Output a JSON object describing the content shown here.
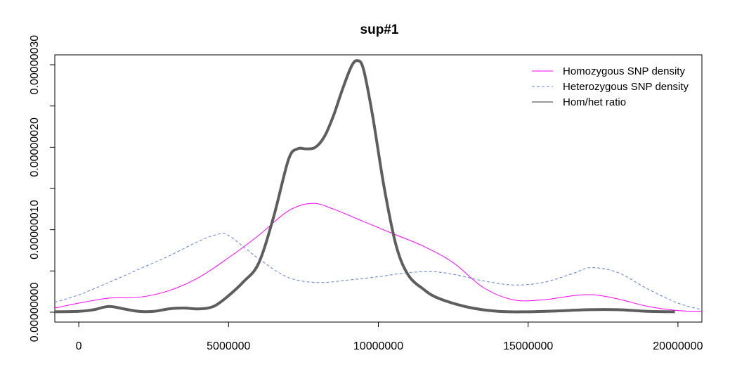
{
  "chart_data": {
    "type": "line",
    "title": "sup#1",
    "xlabel": "",
    "ylabel": "",
    "xlim": [
      -800000,
      20800000
    ],
    "ylim": [
      -1.2e-08,
      3.12e-07
    ],
    "x_ticks": [
      0,
      5000000,
      10000000,
      15000000,
      20000000
    ],
    "x_tick_labels": [
      "0",
      "5000000",
      "10000000",
      "15000000",
      "20000000"
    ],
    "y_ticks": [
      0,
      5e-08,
      1e-07,
      1.5e-07,
      2e-07,
      2.5e-07,
      3e-07
    ],
    "y_tick_labels": [
      "0.00000000",
      "",
      "0.00000010",
      "",
      "0.00000020",
      "",
      "0.00000030"
    ],
    "grid": false,
    "legend_position": "top-right",
    "series": [
      {
        "name": "Homozygous SNP density",
        "color": "#ff00ff",
        "style": "solid",
        "width": 1,
        "x": [
          -800000,
          0,
          1000000,
          2000000,
          3000000,
          4000000,
          5000000,
          6000000,
          7000000,
          7800000,
          8500000,
          9500000,
          10500000,
          11500000,
          12500000,
          13500000,
          14500000,
          15500000,
          16500000,
          17200000,
          18000000,
          19000000,
          20000000,
          20800000
        ],
        "y": [
          5e-09,
          1.1e-08,
          1.7e-08,
          1.8e-08,
          2.6e-08,
          4.2e-08,
          6.6e-08,
          9.3e-08,
          1.23e-07,
          1.32e-07,
          1.25e-07,
          1.1e-07,
          9.5e-08,
          8e-08,
          6e-08,
          3e-08,
          1.5e-08,
          1.5e-08,
          2e-08,
          2.1e-08,
          1.6e-08,
          7e-09,
          2e-09,
          1e-09
        ]
      },
      {
        "name": "Heterozygous SNP density",
        "color": "#5b7fd6",
        "style": "dashed",
        "width": 1,
        "x": [
          -800000,
          0,
          1000000,
          2000000,
          3000000,
          4000000,
          4600000,
          5000000,
          6000000,
          7000000,
          8000000,
          9000000,
          10000000,
          11000000,
          11800000,
          12500000,
          13500000,
          14500000,
          15500000,
          16500000,
          17100000,
          18000000,
          19000000,
          20000000,
          20800000
        ],
        "y": [
          1.2e-08,
          2.1e-08,
          3.6e-08,
          5.2e-08,
          6.8e-08,
          8.6e-08,
          9.4e-08,
          9.3e-08,
          6.5e-08,
          4.2e-08,
          3.6e-08,
          3.9e-08,
          4.3e-08,
          4.8e-08,
          4.9e-08,
          4.6e-08,
          3.8e-08,
          3.3e-08,
          3.6e-08,
          4.7e-08,
          5.4e-08,
          4.8e-08,
          2.8e-08,
          1.1e-08,
          3e-09
        ]
      },
      {
        "name": "Hom/het ratio",
        "color": "#5e5e5e",
        "style": "solid",
        "width": 4,
        "x": [
          -800000,
          0,
          500000,
          1000000,
          1500000,
          2000000,
          2500000,
          3000000,
          3500000,
          4000000,
          4500000,
          5000000,
          5500000,
          6000000,
          6500000,
          7000000,
          7300000,
          7600000,
          7900000,
          8200000,
          8500000,
          8800000,
          9100000,
          9300000,
          9500000,
          9800000,
          10200000,
          10600000,
          11000000,
          11500000,
          12000000,
          13000000,
          14000000,
          15000000,
          16000000,
          17000000,
          18000000,
          19000000,
          19900000
        ],
        "y": [
          5e-10,
          1e-09,
          3e-09,
          7e-09,
          4e-09,
          1e-09,
          1e-09,
          4e-09,
          5e-09,
          4e-09,
          7e-09,
          2e-08,
          3.7e-08,
          5.9e-08,
          1.15e-07,
          1.85e-07,
          1.98e-07,
          1.98e-07,
          2e-07,
          2.13e-07,
          2.38e-07,
          2.7e-07,
          2.98e-07,
          3.05e-07,
          2.95e-07,
          2.4e-07,
          1.5e-07,
          8e-08,
          4.5e-08,
          2.8e-08,
          1.7e-08,
          6e-09,
          1e-09,
          5e-10,
          1.5e-09,
          3e-09,
          3e-09,
          1e-09,
          5e-10
        ]
      }
    ]
  }
}
